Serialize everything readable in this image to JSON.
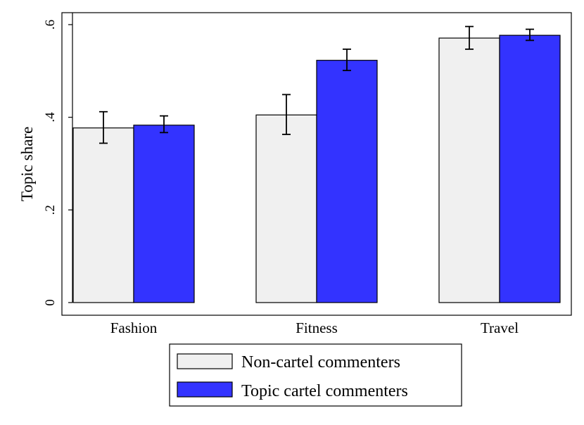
{
  "chart_data": {
    "type": "bar",
    "ylabel": "Topic share",
    "xlabel": "",
    "ylim": [
      0,
      0.6
    ],
    "yticks": [
      {
        "value": 0,
        "label": "0"
      },
      {
        "value": 0.2,
        "label": ".2"
      },
      {
        "value": 0.4,
        "label": ".4"
      },
      {
        "value": 0.6,
        "label": ".6"
      }
    ],
    "categories": [
      "Fashion",
      "Fitness",
      "Travel"
    ],
    "series": [
      {
        "name": "Non-cartel commenters",
        "color": "#f0f0f0",
        "values": [
          0.377,
          0.405,
          0.571
        ],
        "ci_low": [
          0.344,
          0.363,
          0.547
        ],
        "ci_high": [
          0.412,
          0.449,
          0.596
        ]
      },
      {
        "name": "Topic cartel commenters",
        "color": "#3333ff",
        "values": [
          0.383,
          0.523,
          0.577
        ],
        "ci_low": [
          0.367,
          0.501,
          0.566
        ],
        "ci_high": [
          0.403,
          0.547,
          0.59
        ]
      }
    ],
    "grid": false,
    "legend_position": "bottom"
  }
}
